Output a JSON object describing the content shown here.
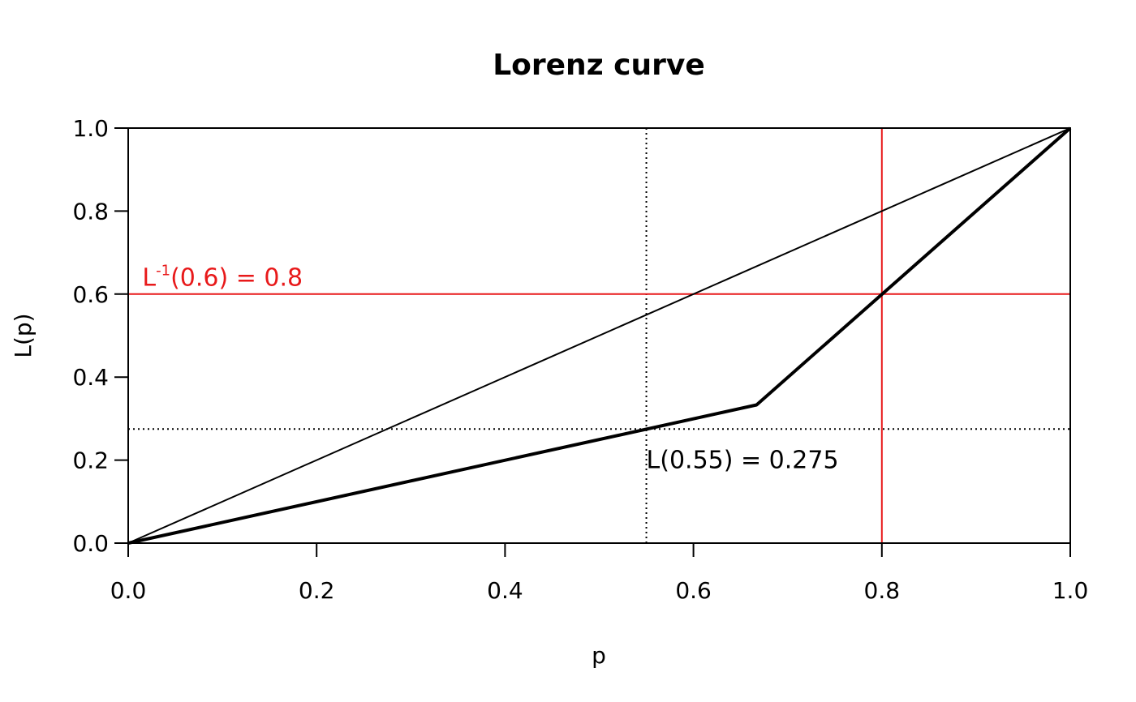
{
  "chart_data": {
    "type": "line",
    "title": "Lorenz curve",
    "xlabel": "p",
    "ylabel": "L(p)",
    "xlim": [
      0,
      1
    ],
    "ylim": [
      0,
      1
    ],
    "x_ticks": [
      "0.0",
      "0.2",
      "0.4",
      "0.6",
      "0.8",
      "1.0"
    ],
    "y_ticks": [
      "0.0",
      "0.2",
      "0.4",
      "0.6",
      "0.8",
      "1.0"
    ],
    "grid": false,
    "series": [
      {
        "x": [
          0,
          1
        ],
        "y": [
          0,
          1
        ],
        "color": "#000000"
      },
      {
        "x": [
          0,
          0.667,
          1
        ],
        "y": [
          0,
          0.333,
          1
        ],
        "color": "#000000"
      }
    ],
    "reference_lines": [
      {
        "orientation": "vertical",
        "value": 0.55,
        "style": "dotted",
        "color": "#000000"
      },
      {
        "orientation": "horizontal",
        "value": 0.275,
        "style": "dotted",
        "color": "#000000"
      },
      {
        "orientation": "vertical",
        "value": 0.8,
        "style": "solid",
        "color": "#e8191a"
      },
      {
        "orientation": "horizontal",
        "value": 0.6,
        "style": "solid",
        "color": "#e8191a"
      }
    ],
    "annotations": [
      {
        "text": "L(0.55) = 0.275",
        "parts": {
          "base": "L(0.55) = 0.275"
        },
        "color": "#000000",
        "x": 0.55,
        "y": 0.2
      },
      {
        "text": "L-1(0.6) = 0.8",
        "parts": {
          "base": "L",
          "sup": "-1",
          "rest": "(0.6) = 0.8"
        },
        "color": "#e8191a",
        "x": 0.015,
        "y": 0.64
      }
    ]
  }
}
